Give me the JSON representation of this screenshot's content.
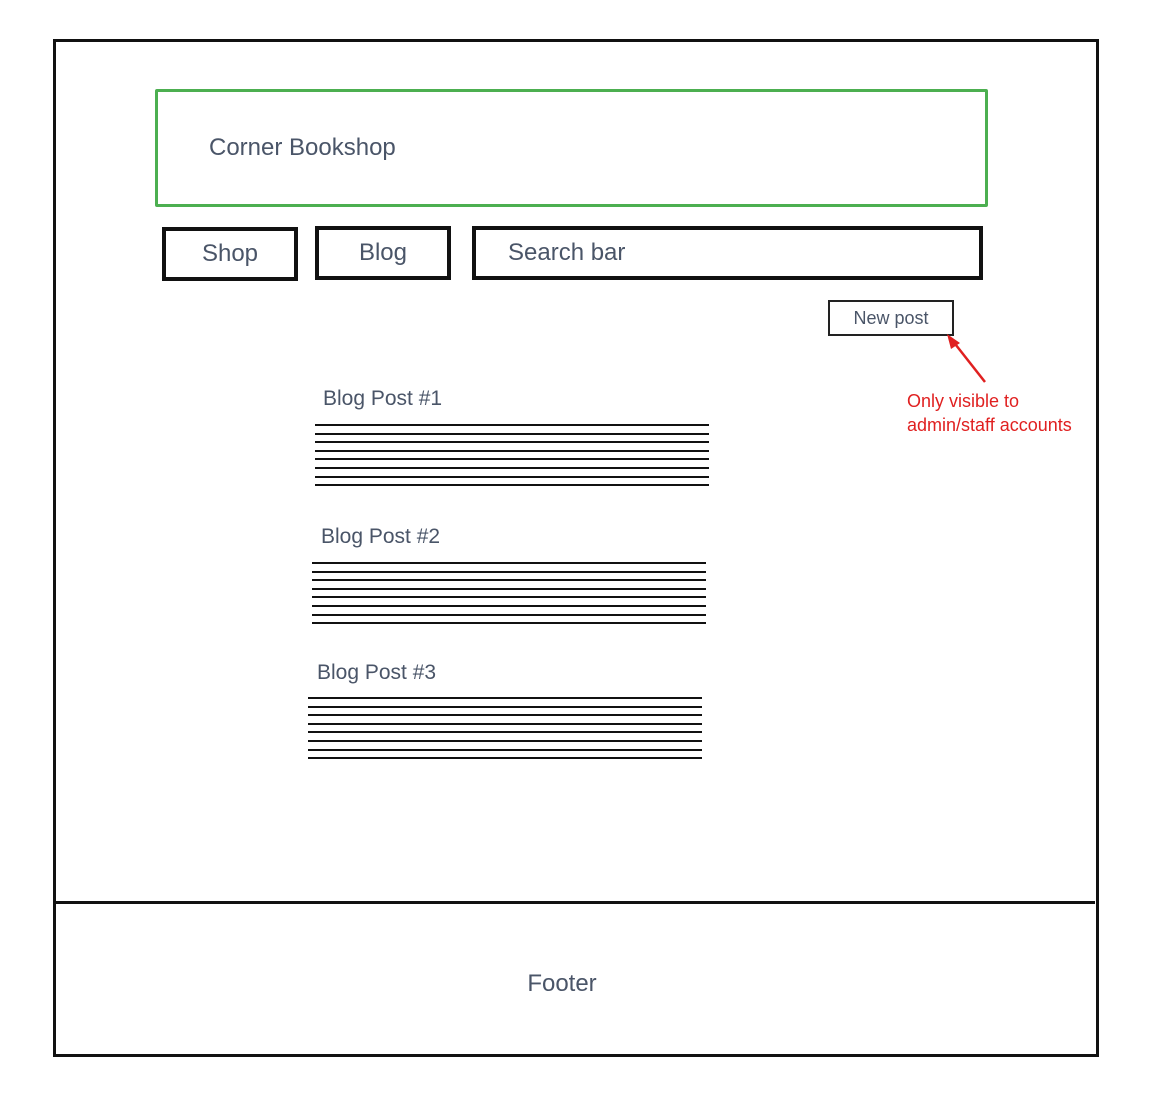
{
  "header": {
    "title": "Corner Bookshop"
  },
  "nav": {
    "shop_label": "Shop",
    "blog_label": "Blog",
    "search_label": "Search bar"
  },
  "new_post": {
    "label": "New post"
  },
  "annotation": {
    "line1": "Only visible to",
    "line2": "admin/staff accounts"
  },
  "posts": [
    {
      "title": "Blog Post #1"
    },
    {
      "title": "Blog Post #2"
    },
    {
      "title": "Blog Post #3"
    }
  ],
  "footer": {
    "label": "Footer"
  },
  "colors": {
    "header_border": "#4caf50",
    "annotation": "#e02020",
    "outline": "#111111",
    "text": "#4a5568"
  }
}
